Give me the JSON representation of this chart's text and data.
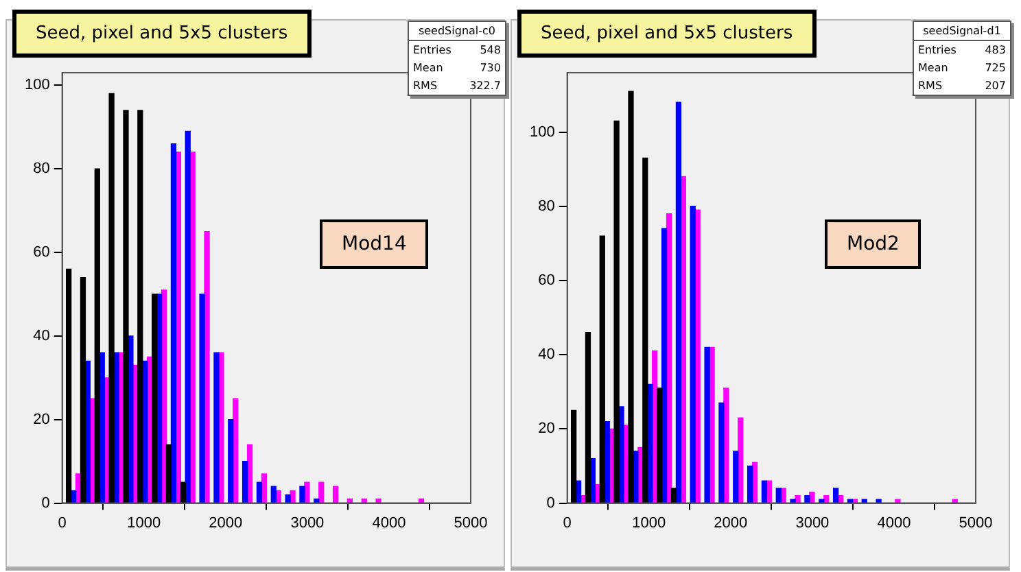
{
  "chart_data": [
    {
      "type": "histogram",
      "title": "Seed, pixel and 5x5 clusters",
      "annotations": [
        "seedSignal-c0",
        "Entries 548",
        "Mean 730",
        "RMS 322.7",
        "Mod14"
      ],
      "bins": [
        50,
        225,
        400,
        575,
        750,
        925,
        1100,
        1275,
        1450,
        1625,
        1800,
        1975,
        2150,
        2325,
        2500,
        2675,
        2850,
        3025,
        3200,
        3375,
        3550,
        3725,
        3900,
        4075,
        4250,
        4425,
        4600,
        4775,
        4950
      ],
      "series": [
        {
          "color": "#000000",
          "values": [
            56,
            54,
            80,
            98,
            94,
            94,
            50,
            14,
            5,
            0,
            0,
            0,
            0,
            0,
            0,
            0,
            0,
            0,
            0,
            0,
            0,
            0,
            0,
            0,
            0,
            0,
            0,
            0
          ]
        },
        {
          "color": "#0000ff",
          "values": [
            3,
            34,
            36,
            36,
            40,
            34,
            50,
            86,
            89,
            50,
            36,
            20,
            10,
            5,
            4,
            2,
            4,
            1,
            0,
            0,
            0,
            0,
            0,
            0,
            0,
            0,
            0,
            0
          ]
        },
        {
          "color": "#ff00ff",
          "values": [
            7,
            25,
            30,
            36,
            33,
            35,
            51,
            84,
            84,
            65,
            36,
            25,
            14,
            7,
            3,
            3,
            5,
            5,
            4,
            1,
            1,
            1,
            0,
            0,
            1,
            0,
            0,
            0
          ]
        }
      ],
      "xlim": [
        0,
        5000
      ],
      "xticks": [
        0,
        1000,
        2000,
        3000,
        4000,
        5000
      ],
      "ylim": [
        0,
        103
      ],
      "yticks": [
        0,
        20,
        40,
        60,
        80,
        100
      ],
      "grid": false,
      "legend": false
    },
    {
      "type": "histogram",
      "title": "Seed, pixel and 5x5 clusters",
      "annotations": [
        "seedSignal-d1",
        "Entries 483",
        "Mean 725",
        "RMS 207",
        "Mod2"
      ],
      "bins": [
        50,
        225,
        400,
        575,
        750,
        925,
        1100,
        1275,
        1450,
        1625,
        1800,
        1975,
        2150,
        2325,
        2500,
        2675,
        2850,
        3025,
        3200,
        3375,
        3550,
        3725,
        3900,
        4075,
        4250,
        4425,
        4600,
        4775,
        4950
      ],
      "series": [
        {
          "color": "#000000",
          "values": [
            25,
            46,
            72,
            103,
            111,
            93,
            31,
            4,
            0,
            0,
            0,
            0,
            0,
            0,
            0,
            0,
            0,
            0,
            0,
            0,
            0,
            0,
            0,
            0,
            0,
            0,
            0,
            0
          ]
        },
        {
          "color": "#0000ff",
          "values": [
            6,
            12,
            22,
            26,
            14,
            32,
            74,
            108,
            80,
            42,
            27,
            14,
            10,
            6,
            4,
            1,
            2,
            1,
            4,
            1,
            1,
            1,
            0,
            0,
            0,
            0,
            0,
            0
          ]
        },
        {
          "color": "#ff00ff",
          "values": [
            2,
            5,
            20,
            21,
            15,
            41,
            78,
            88,
            79,
            42,
            31,
            23,
            11,
            6,
            4,
            2,
            3,
            2,
            2,
            1,
            0,
            0,
            1,
            0,
            0,
            0,
            1,
            0
          ]
        }
      ],
      "xlim": [
        0,
        5000
      ],
      "xticks": [
        0,
        1000,
        2000,
        3000,
        4000,
        5000
      ],
      "ylim": [
        0,
        116
      ],
      "yticks": [
        0,
        20,
        40,
        60,
        80,
        100
      ],
      "grid": false,
      "legend": false
    }
  ]
}
